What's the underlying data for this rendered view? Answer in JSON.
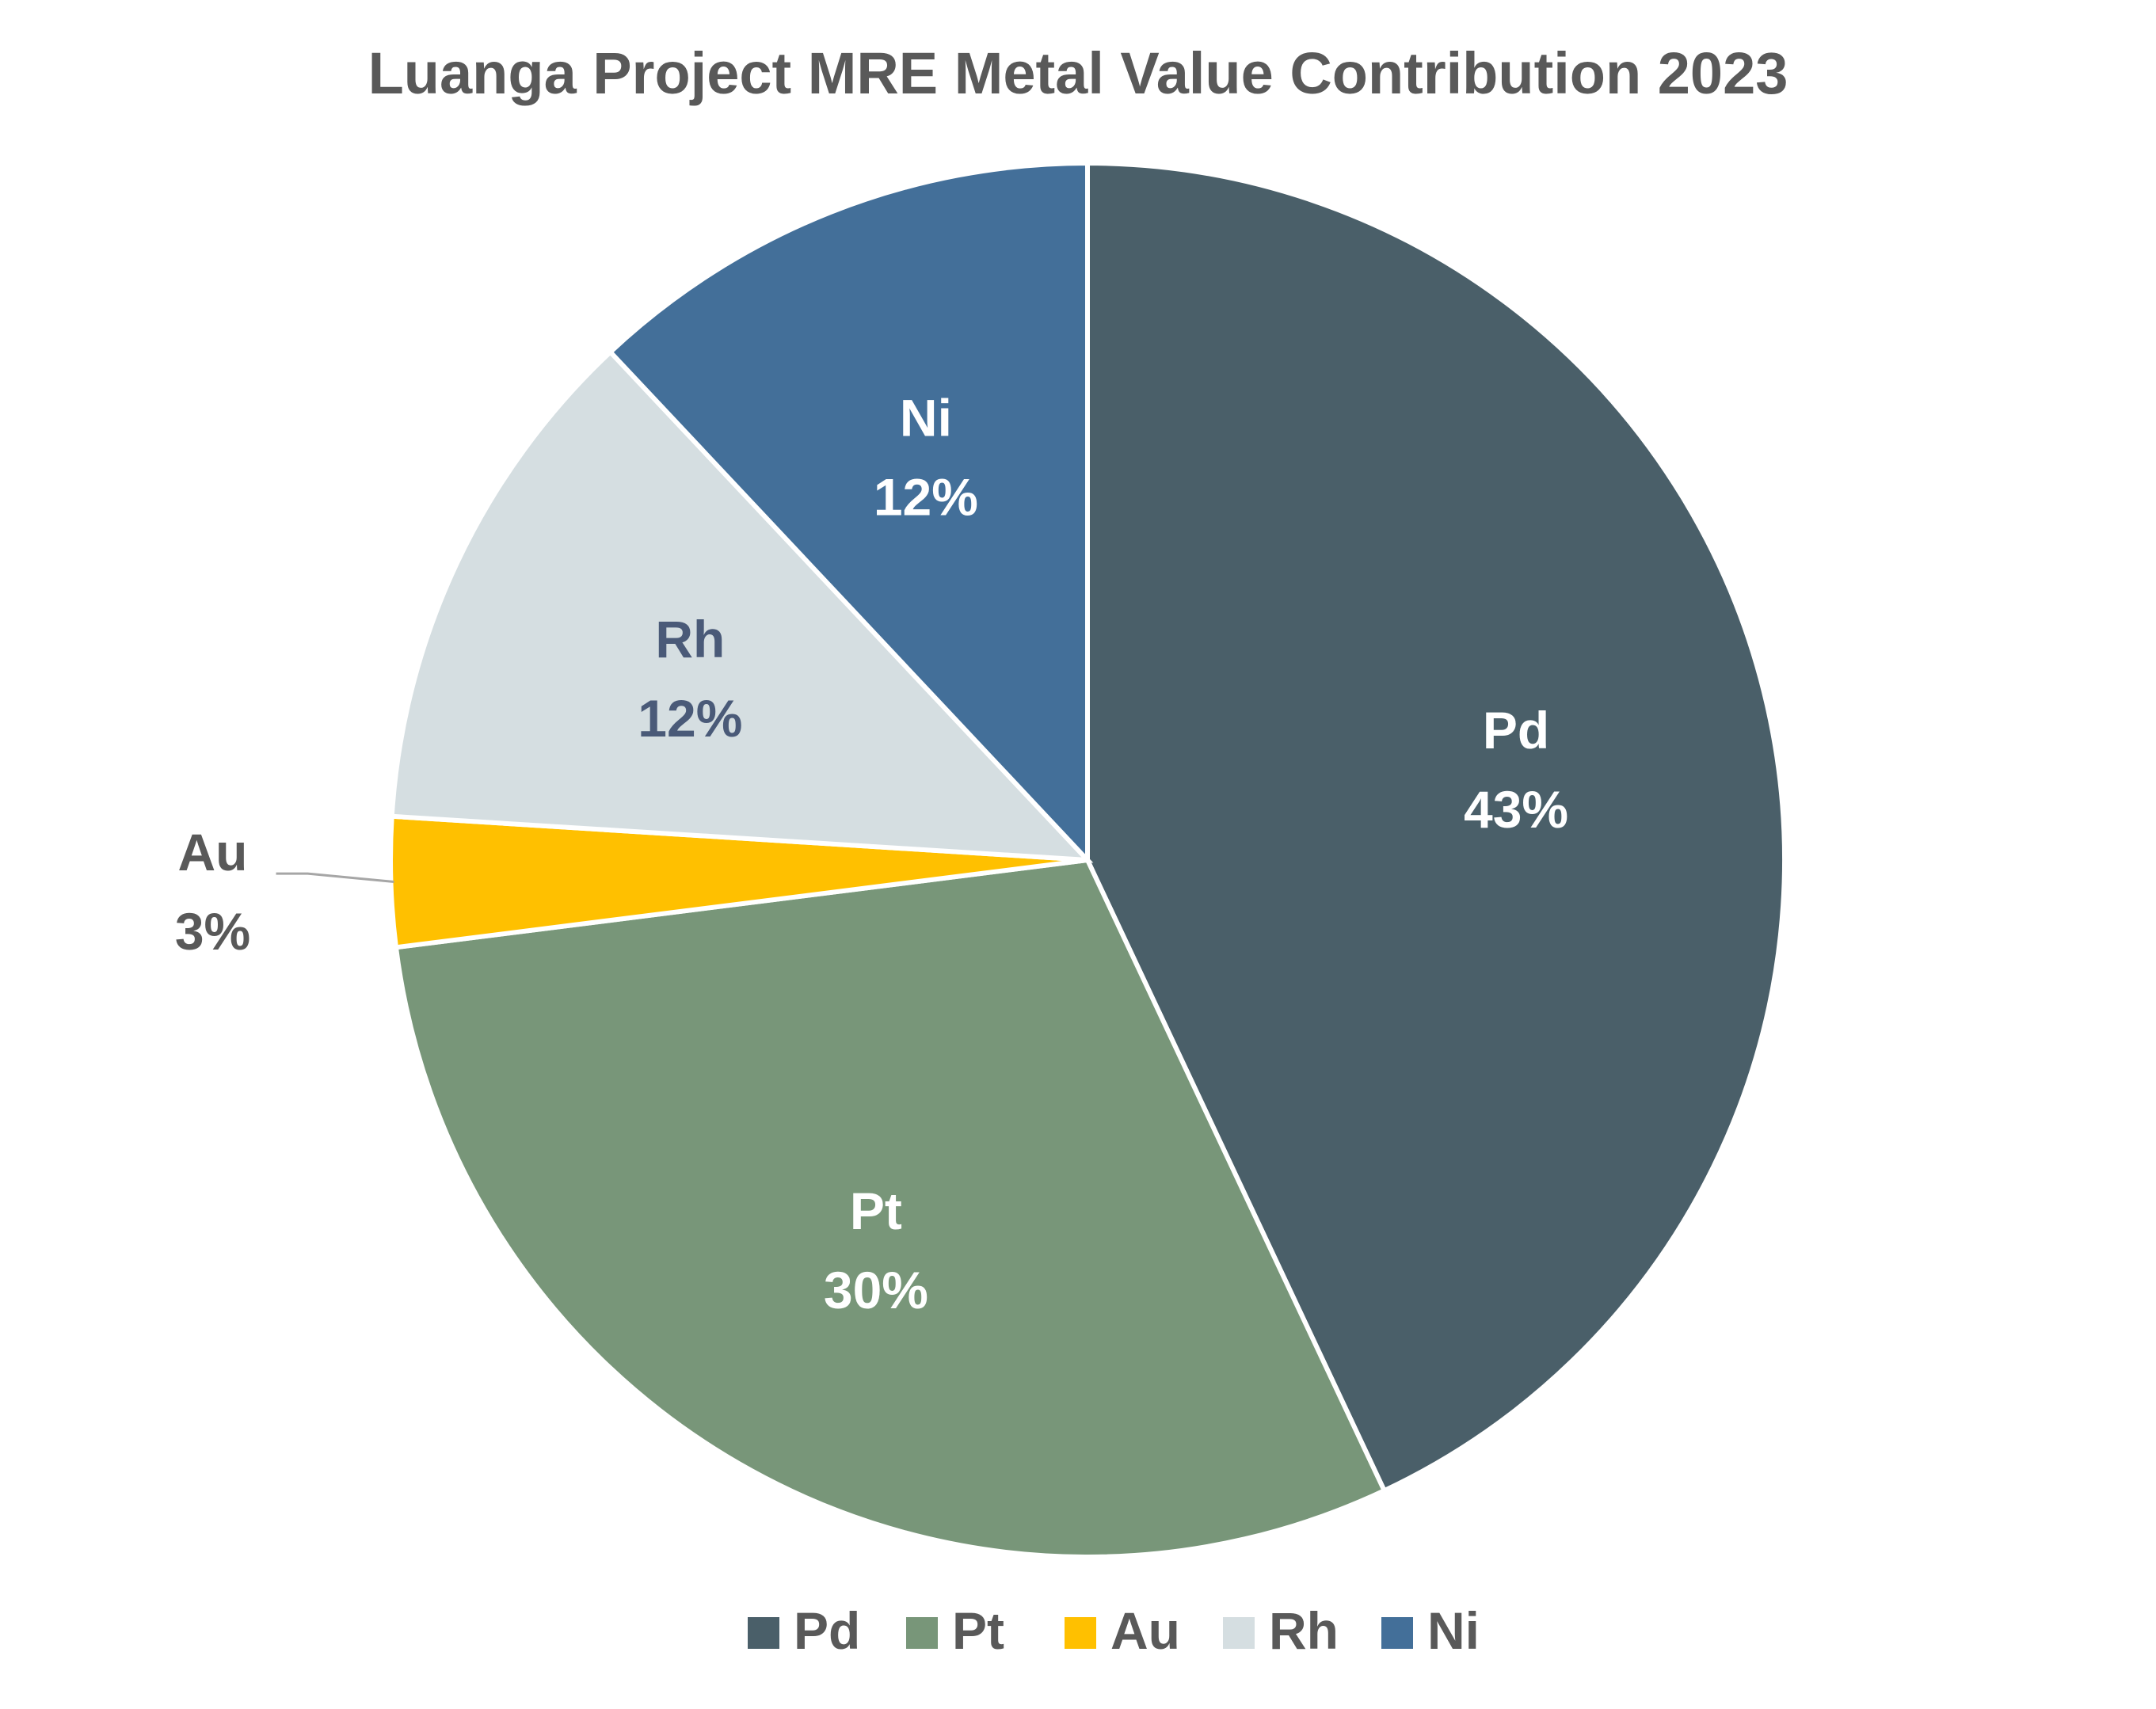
{
  "chart_data": {
    "type": "pie",
    "title": "Luanga Project MRE Metal Value Contribution 2023",
    "slices": [
      {
        "name": "Pd",
        "value": 43,
        "label": "43%",
        "color": "#4A5F69",
        "label_color": "#FFFFFF"
      },
      {
        "name": "Pt",
        "value": 30,
        "label": "30%",
        "color": "#789679",
        "label_color": "#FFFFFF"
      },
      {
        "name": "Au",
        "value": 3,
        "label": "3%",
        "color": "#FFC000",
        "label_color": "#595959"
      },
      {
        "name": "Rh",
        "value": 12,
        "label": "12%",
        "color": "#D5DEE1",
        "label_color": "#4A5A78"
      },
      {
        "name": "Ni",
        "value": 12,
        "label": "12%",
        "color": "#436F99",
        "label_color": "#FFFFFF"
      }
    ],
    "legend": {
      "position": "bottom",
      "entries": [
        "Pd",
        "Pt",
        "Au",
        "Rh",
        "Ni"
      ]
    }
  }
}
